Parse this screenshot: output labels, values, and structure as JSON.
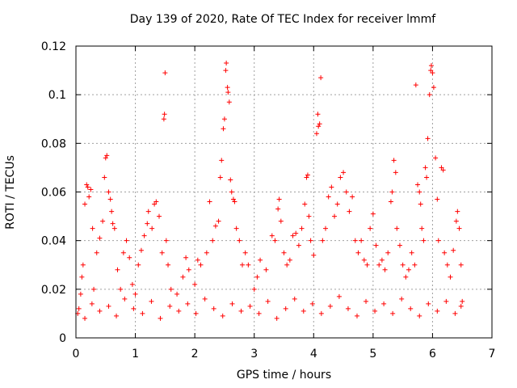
{
  "chart_data": {
    "type": "scatter",
    "title": "Day 139 of 2020, Rate Of TEC Index for receiver lmmf",
    "xlabel": "GPS time / hours",
    "ylabel": "ROTI / TECUs",
    "xlim": [
      0,
      7
    ],
    "ylim": [
      0,
      0.12
    ],
    "xticks": [
      "0",
      "1",
      "2",
      "3",
      "4",
      "5",
      "6",
      "7"
    ],
    "yticks": [
      "0",
      "0.02",
      "0.04",
      "0.06",
      "0.08",
      "0.1",
      "0.12"
    ],
    "grid": true,
    "marker": "+",
    "color": "#ff0000",
    "series": [
      {
        "name": "ROTI",
        "points": [
          [
            0.05,
            0.012
          ],
          [
            0.08,
            0.018
          ],
          [
            0.1,
            0.025
          ],
          [
            0.12,
            0.03
          ],
          [
            0.15,
            0.055
          ],
          [
            0.18,
            0.063
          ],
          [
            0.2,
            0.062
          ],
          [
            0.22,
            0.058
          ],
          [
            0.25,
            0.061
          ],
          [
            0.28,
            0.045
          ],
          [
            0.3,
            0.02
          ],
          [
            0.35,
            0.035
          ],
          [
            0.4,
            0.041
          ],
          [
            0.45,
            0.048
          ],
          [
            0.48,
            0.066
          ],
          [
            0.5,
            0.074
          ],
          [
            0.52,
            0.075
          ],
          [
            0.55,
            0.06
          ],
          [
            0.58,
            0.057
          ],
          [
            0.6,
            0.052
          ],
          [
            0.62,
            0.047
          ],
          [
            0.65,
            0.045
          ],
          [
            0.7,
            0.028
          ],
          [
            0.75,
            0.02
          ],
          [
            0.8,
            0.035
          ],
          [
            0.85,
            0.04
          ],
          [
            0.9,
            0.033
          ],
          [
            0.95,
            0.022
          ],
          [
            1.0,
            0.018
          ],
          [
            1.05,
            0.03
          ],
          [
            1.1,
            0.036
          ],
          [
            1.15,
            0.042
          ],
          [
            1.2,
            0.047
          ],
          [
            1.22,
            0.052
          ],
          [
            1.28,
            0.045
          ],
          [
            1.32,
            0.055
          ],
          [
            1.35,
            0.056
          ],
          [
            1.4,
            0.05
          ],
          [
            1.45,
            0.035
          ],
          [
            1.48,
            0.09
          ],
          [
            1.49,
            0.092
          ],
          [
            1.5,
            0.109
          ],
          [
            1.52,
            0.04
          ],
          [
            1.55,
            0.03
          ],
          [
            1.6,
            0.02
          ],
          [
            1.7,
            0.018
          ],
          [
            1.8,
            0.025
          ],
          [
            1.85,
            0.033
          ],
          [
            1.9,
            0.028
          ],
          [
            2.0,
            0.022
          ],
          [
            2.05,
            0.032
          ],
          [
            2.1,
            0.03
          ],
          [
            2.2,
            0.035
          ],
          [
            2.25,
            0.056
          ],
          [
            2.3,
            0.04
          ],
          [
            2.35,
            0.046
          ],
          [
            2.4,
            0.048
          ],
          [
            2.43,
            0.066
          ],
          [
            2.45,
            0.073
          ],
          [
            2.48,
            0.086
          ],
          [
            2.5,
            0.09
          ],
          [
            2.52,
            0.11
          ],
          [
            2.53,
            0.113
          ],
          [
            2.55,
            0.103
          ],
          [
            2.56,
            0.101
          ],
          [
            2.58,
            0.097
          ],
          [
            2.6,
            0.065
          ],
          [
            2.62,
            0.06
          ],
          [
            2.65,
            0.057
          ],
          [
            2.67,
            0.056
          ],
          [
            2.7,
            0.045
          ],
          [
            2.75,
            0.04
          ],
          [
            2.8,
            0.03
          ],
          [
            2.85,
            0.035
          ],
          [
            2.9,
            0.03
          ],
          [
            3.0,
            0.02
          ],
          [
            3.05,
            0.025
          ],
          [
            3.1,
            0.032
          ],
          [
            3.2,
            0.028
          ],
          [
            3.3,
            0.042
          ],
          [
            3.35,
            0.04
          ],
          [
            3.4,
            0.053
          ],
          [
            3.42,
            0.057
          ],
          [
            3.45,
            0.048
          ],
          [
            3.5,
            0.035
          ],
          [
            3.55,
            0.03
          ],
          [
            3.6,
            0.032
          ],
          [
            3.65,
            0.042
          ],
          [
            3.7,
            0.043
          ],
          [
            3.75,
            0.038
          ],
          [
            3.8,
            0.045
          ],
          [
            3.85,
            0.055
          ],
          [
            3.88,
            0.066
          ],
          [
            3.9,
            0.067
          ],
          [
            3.92,
            0.05
          ],
          [
            3.95,
            0.04
          ],
          [
            4.0,
            0.034
          ],
          [
            4.05,
            0.084
          ],
          [
            4.07,
            0.092
          ],
          [
            4.08,
            0.087
          ],
          [
            4.1,
            0.088
          ],
          [
            4.12,
            0.107
          ],
          [
            4.15,
            0.04
          ],
          [
            4.2,
            0.045
          ],
          [
            4.25,
            0.058
          ],
          [
            4.3,
            0.062
          ],
          [
            4.35,
            0.05
          ],
          [
            4.4,
            0.055
          ],
          [
            4.45,
            0.066
          ],
          [
            4.5,
            0.068
          ],
          [
            4.55,
            0.06
          ],
          [
            4.6,
            0.052
          ],
          [
            4.65,
            0.058
          ],
          [
            4.7,
            0.04
          ],
          [
            4.75,
            0.035
          ],
          [
            4.8,
            0.04
          ],
          [
            4.85,
            0.032
          ],
          [
            4.9,
            0.03
          ],
          [
            4.95,
            0.045
          ],
          [
            5.0,
            0.051
          ],
          [
            5.05,
            0.038
          ],
          [
            5.1,
            0.03
          ],
          [
            5.15,
            0.032
          ],
          [
            5.2,
            0.028
          ],
          [
            5.25,
            0.035
          ],
          [
            5.3,
            0.056
          ],
          [
            5.32,
            0.06
          ],
          [
            5.35,
            0.073
          ],
          [
            5.38,
            0.068
          ],
          [
            5.4,
            0.045
          ],
          [
            5.45,
            0.038
          ],
          [
            5.5,
            0.03
          ],
          [
            5.55,
            0.025
          ],
          [
            5.6,
            0.028
          ],
          [
            5.65,
            0.035
          ],
          [
            5.7,
            0.03
          ],
          [
            5.72,
            0.104
          ],
          [
            5.75,
            0.063
          ],
          [
            5.78,
            0.06
          ],
          [
            5.8,
            0.055
          ],
          [
            5.82,
            0.045
          ],
          [
            5.85,
            0.04
          ],
          [
            5.88,
            0.07
          ],
          [
            5.9,
            0.066
          ],
          [
            5.92,
            0.082
          ],
          [
            5.95,
            0.1
          ],
          [
            5.97,
            0.11
          ],
          [
            5.98,
            0.112
          ],
          [
            6.0,
            0.109
          ],
          [
            6.02,
            0.103
          ],
          [
            6.05,
            0.074
          ],
          [
            6.08,
            0.057
          ],
          [
            6.1,
            0.04
          ],
          [
            6.15,
            0.07
          ],
          [
            6.18,
            0.069
          ],
          [
            6.2,
            0.035
          ],
          [
            6.25,
            0.03
          ],
          [
            6.3,
            0.025
          ],
          [
            6.35,
            0.036
          ],
          [
            6.4,
            0.048
          ],
          [
            6.42,
            0.052
          ],
          [
            6.45,
            0.045
          ],
          [
            6.48,
            0.03
          ],
          [
            6.5,
            0.015
          ],
          [
            0.03,
            0.01
          ],
          [
            0.15,
            0.008
          ],
          [
            0.27,
            0.014
          ],
          [
            0.4,
            0.011
          ],
          [
            0.55,
            0.013
          ],
          [
            0.68,
            0.009
          ],
          [
            0.82,
            0.016
          ],
          [
            0.97,
            0.012
          ],
          [
            1.12,
            0.01
          ],
          [
            1.27,
            0.015
          ],
          [
            1.42,
            0.008
          ],
          [
            1.58,
            0.013
          ],
          [
            1.73,
            0.011
          ],
          [
            1.88,
            0.014
          ],
          [
            2.02,
            0.01
          ],
          [
            2.17,
            0.016
          ],
          [
            2.32,
            0.012
          ],
          [
            2.47,
            0.009
          ],
          [
            2.63,
            0.014
          ],
          [
            2.78,
            0.011
          ],
          [
            2.93,
            0.013
          ],
          [
            3.08,
            0.01
          ],
          [
            3.23,
            0.015
          ],
          [
            3.38,
            0.008
          ],
          [
            3.53,
            0.012
          ],
          [
            3.68,
            0.016
          ],
          [
            3.83,
            0.011
          ],
          [
            3.98,
            0.014
          ],
          [
            4.13,
            0.01
          ],
          [
            4.28,
            0.013
          ],
          [
            4.43,
            0.017
          ],
          [
            4.58,
            0.012
          ],
          [
            4.73,
            0.009
          ],
          [
            4.88,
            0.015
          ],
          [
            5.03,
            0.011
          ],
          [
            5.18,
            0.014
          ],
          [
            5.33,
            0.01
          ],
          [
            5.48,
            0.016
          ],
          [
            5.63,
            0.012
          ],
          [
            5.78,
            0.009
          ],
          [
            5.93,
            0.014
          ],
          [
            6.08,
            0.011
          ],
          [
            6.23,
            0.015
          ],
          [
            6.38,
            0.01
          ],
          [
            6.48,
            0.013
          ]
        ]
      }
    ]
  }
}
